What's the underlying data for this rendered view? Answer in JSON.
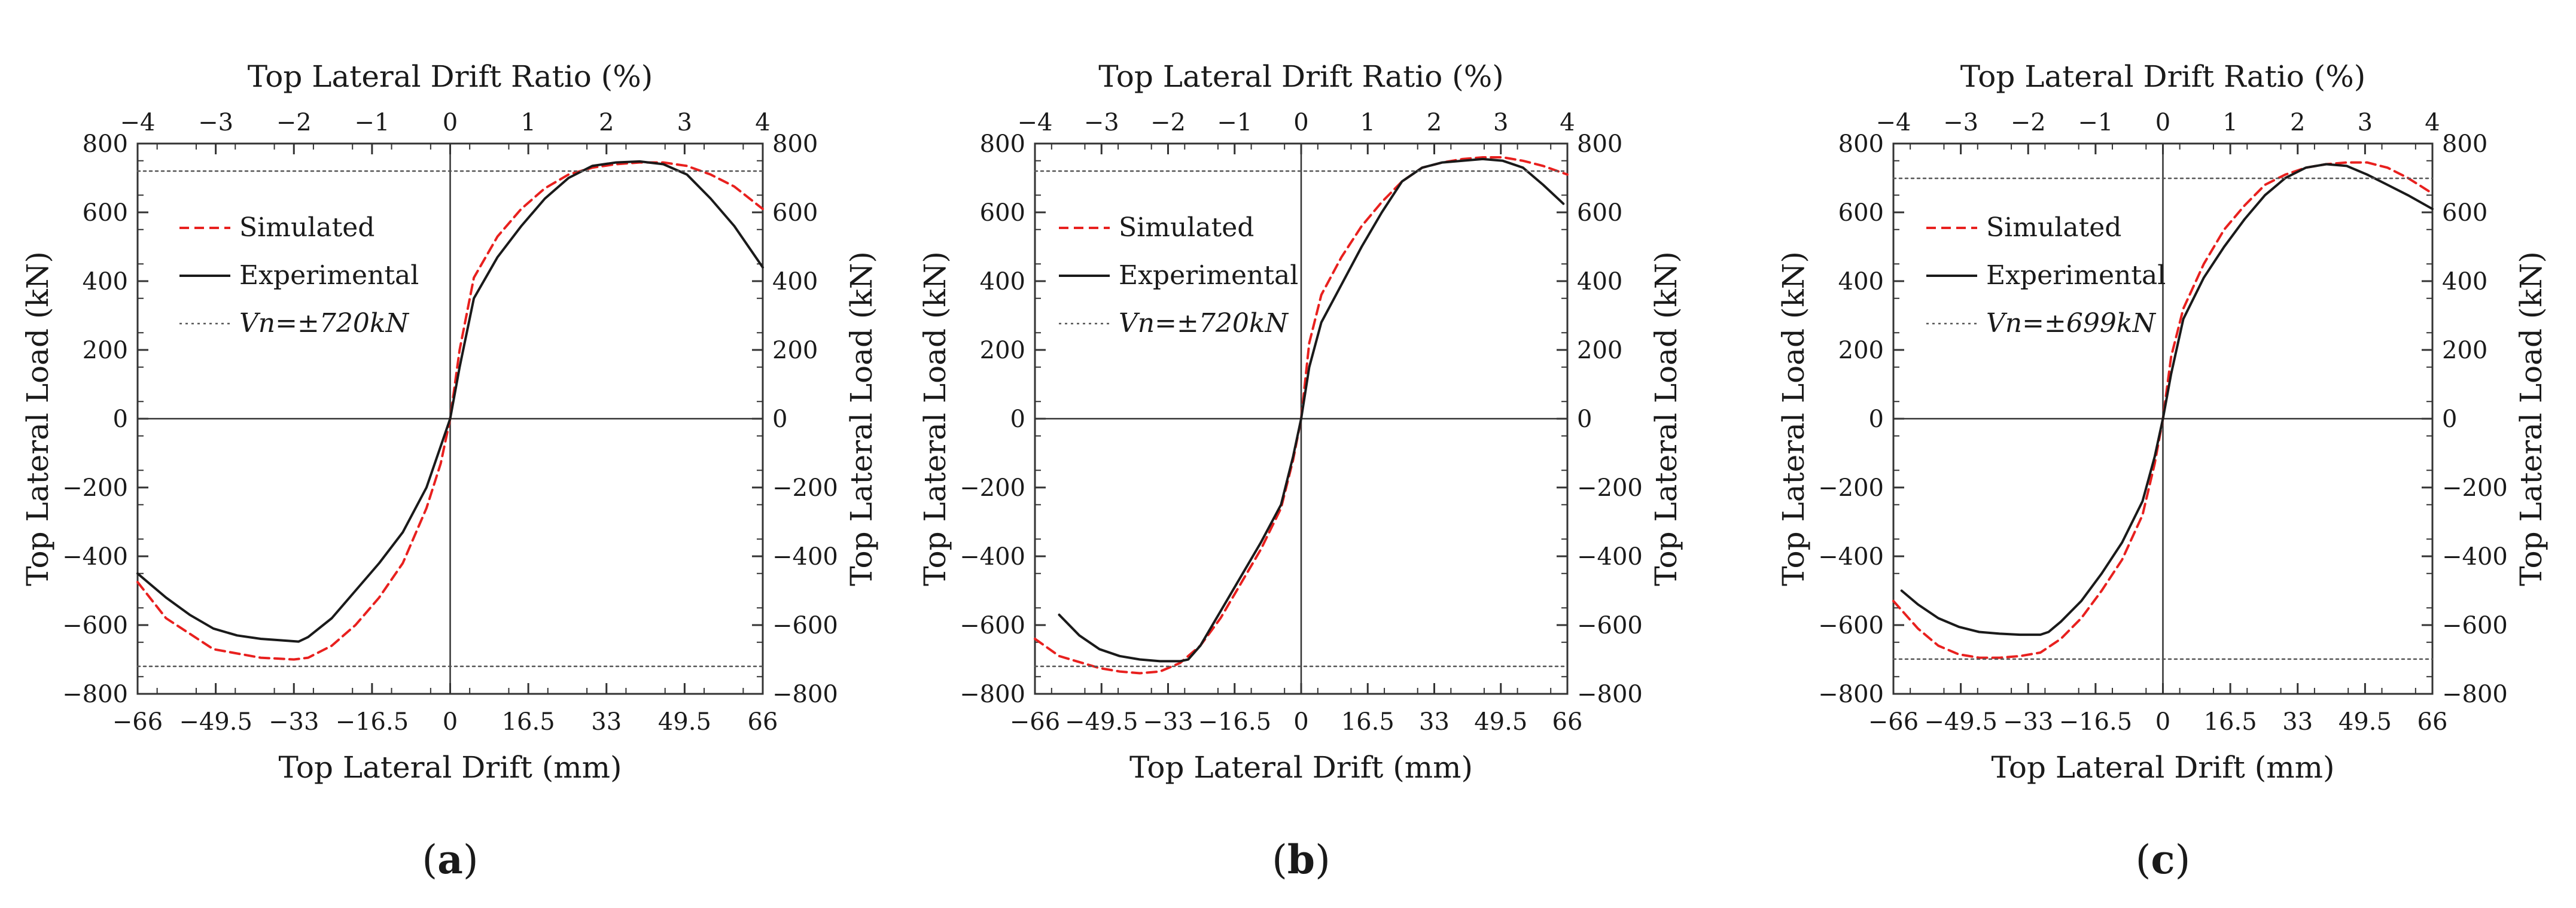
{
  "colors": {
    "simulated": "#e8201e",
    "experimental": "#1a1a1a",
    "nominal": "#555555"
  },
  "chart_data": [
    {
      "type": "line",
      "panel_label": "a",
      "xlabel": "Top Lateral Drift (mm)",
      "ylabel_left": "Top Lateral  Load (kN)",
      "ylabel_right": "Top Lateral  Load (kN)",
      "x2label": "Top Lateral Drift Ratio (%)",
      "xlim": [
        -66,
        66
      ],
      "ylim": [
        -800,
        800
      ],
      "x_ticks": [
        "−66",
        "−49.5",
        "−33",
        "−16.5",
        "0",
        "16.5",
        "33",
        "49.5",
        "66"
      ],
      "x2_ticks": [
        "−4",
        "−3",
        "−2",
        "−1",
        "0",
        "1",
        "2",
        "3",
        "4"
      ],
      "y_ticks": [
        "−800",
        "−600",
        "−400",
        "−200",
        "0",
        "200",
        "400",
        "600",
        "800"
      ],
      "legend_placement": "upper-left",
      "nominal_value": 720,
      "series": [
        {
          "name": "Simulated",
          "style": "dashed",
          "x": [
            -66,
            -60,
            -50,
            -40,
            -33,
            -30,
            -25,
            -20,
            -15,
            -10,
            -5,
            -2,
            0,
            2,
            5,
            10,
            15,
            20,
            25,
            30,
            35,
            40,
            45,
            50,
            55,
            60,
            66
          ],
          "y": [
            -475,
            -580,
            -670,
            -695,
            -700,
            -695,
            -660,
            -600,
            -520,
            -420,
            -260,
            -130,
            0,
            200,
            410,
            530,
            610,
            670,
            710,
            730,
            740,
            745,
            745,
            735,
            710,
            675,
            610
          ]
        },
        {
          "name": "Experimental",
          "style": "solid",
          "x": [
            -66,
            -60,
            -55,
            -50,
            -45,
            -40,
            -35,
            -32,
            -30,
            -25,
            -20,
            -15,
            -10,
            -5,
            -2,
            0,
            2,
            5,
            10,
            15,
            20,
            25,
            30,
            35,
            40,
            45,
            50,
            55,
            60,
            66
          ],
          "y": [
            -450,
            -520,
            -570,
            -610,
            -630,
            -640,
            -645,
            -648,
            -635,
            -580,
            -500,
            -420,
            -330,
            -200,
            -80,
            0,
            150,
            350,
            470,
            560,
            640,
            700,
            735,
            745,
            748,
            740,
            710,
            640,
            560,
            440
          ]
        },
        {
          "name": "Vn=±720kN",
          "style": "dotted",
          "x": [
            -66,
            66
          ],
          "y": [
            720,
            720
          ]
        },
        {
          "style": "dotted",
          "x": [
            -66,
            66
          ],
          "y": [
            -720,
            -720
          ]
        }
      ]
    },
    {
      "type": "line",
      "panel_label": "b",
      "xlabel": "Top  Lateral Drift (mm)",
      "ylabel_left": "Top  Lateral  Load (kN)",
      "ylabel_right": "Top  Lateral  Load (kN)",
      "x2label": "Top Lateral Drift Ratio (%)",
      "xlim": [
        -66,
        66
      ],
      "ylim": [
        -800,
        800
      ],
      "x_ticks": [
        "−66",
        "−49.5",
        "−33",
        "−16.5",
        "0",
        "16.5",
        "33",
        "49.5",
        "66"
      ],
      "x2_ticks": [
        "−4",
        "−3",
        "−2",
        "−1",
        "0",
        "1",
        "2",
        "3",
        "4"
      ],
      "y_ticks": [
        "−800",
        "−600",
        "−400",
        "−200",
        "0",
        "200",
        "400",
        "600",
        "800"
      ],
      "legend_placement": "upper-left",
      "nominal_value": 720,
      "series": [
        {
          "name": "Simulated",
          "style": "dashed",
          "x": [
            -66,
            -60,
            -50,
            -45,
            -40,
            -35,
            -30,
            -25,
            -20,
            -15,
            -10,
            -5,
            -2,
            0,
            2,
            5,
            10,
            15,
            20,
            25,
            30,
            35,
            40,
            45,
            50,
            55,
            60,
            66
          ],
          "y": [
            -640,
            -690,
            -725,
            -735,
            -740,
            -735,
            -710,
            -660,
            -580,
            -480,
            -380,
            -260,
            -120,
            0,
            220,
            360,
            470,
            560,
            630,
            690,
            730,
            745,
            755,
            760,
            760,
            750,
            735,
            710
          ]
        },
        {
          "name": "Experimental",
          "style": "solid",
          "x": [
            -60,
            -55,
            -50,
            -45,
            -40,
            -35,
            -30,
            -28,
            -25,
            -20,
            -15,
            -10,
            -5,
            -2,
            0,
            2,
            5,
            10,
            15,
            20,
            25,
            30,
            35,
            40,
            45,
            50,
            55,
            60,
            65
          ],
          "y": [
            -570,
            -630,
            -670,
            -690,
            -700,
            -705,
            -705,
            -700,
            -660,
            -560,
            -460,
            -360,
            -250,
            -110,
            0,
            150,
            280,
            390,
            500,
            600,
            690,
            730,
            745,
            750,
            755,
            750,
            730,
            680,
            625
          ]
        },
        {
          "name": "Vn=±720kN",
          "style": "dotted",
          "x": [
            -66,
            66
          ],
          "y": [
            720,
            720
          ]
        },
        {
          "style": "dotted",
          "x": [
            -66,
            66
          ],
          "y": [
            -720,
            -720
          ]
        }
      ]
    },
    {
      "type": "line",
      "panel_label": "c",
      "xlabel": "Top Lateral Drift (mm)",
      "ylabel_left": "Top Lateral  Load (kN)",
      "ylabel_right": "Top Lateral  Load (kN)",
      "x2label": "Top Lateral Drift Ratio (%)",
      "xlim": [
        -66,
        66
      ],
      "ylim": [
        -800,
        800
      ],
      "x_ticks": [
        "−66",
        "−49.5",
        "−33",
        "−16.5",
        "0",
        "16.5",
        "33",
        "49.5",
        "66"
      ],
      "x2_ticks": [
        "−4",
        "−3",
        "−2",
        "−1",
        "0",
        "1",
        "2",
        "3",
        "4"
      ],
      "y_ticks": [
        "−800",
        "−600",
        "−400",
        "−200",
        "0",
        "200",
        "400",
        "600",
        "800"
      ],
      "legend_placement": "upper-left",
      "nominal_value": 699,
      "series": [
        {
          "name": "Simulated",
          "style": "dashed",
          "x": [
            -66,
            -60,
            -55,
            -50,
            -45,
            -40,
            -35,
            -30,
            -25,
            -20,
            -15,
            -10,
            -5,
            -2,
            0,
            2,
            5,
            10,
            15,
            20,
            25,
            30,
            35,
            40,
            45,
            50,
            55,
            60,
            66
          ],
          "y": [
            -530,
            -610,
            -660,
            -685,
            -695,
            -695,
            -690,
            -680,
            -640,
            -580,
            -500,
            -410,
            -280,
            -130,
            0,
            180,
            320,
            450,
            550,
            620,
            680,
            710,
            730,
            740,
            745,
            745,
            730,
            700,
            655
          ]
        },
        {
          "name": "Experimental",
          "style": "solid",
          "x": [
            -64,
            -60,
            -55,
            -50,
            -45,
            -40,
            -35,
            -30,
            -28,
            -25,
            -20,
            -15,
            -10,
            -5,
            -2,
            0,
            2,
            5,
            10,
            15,
            20,
            25,
            30,
            35,
            40,
            45,
            50,
            55,
            60,
            66
          ],
          "y": [
            -500,
            -540,
            -580,
            -605,
            -620,
            -625,
            -628,
            -628,
            -620,
            -590,
            -530,
            -450,
            -360,
            -240,
            -110,
            0,
            130,
            290,
            410,
            500,
            580,
            650,
            700,
            730,
            740,
            735,
            710,
            680,
            650,
            610
          ]
        },
        {
          "name": "Vn=±699kN",
          "style": "dotted",
          "x": [
            -66,
            66
          ],
          "y": [
            699,
            699
          ]
        },
        {
          "style": "dotted",
          "x": [
            -66,
            66
          ],
          "y": [
            -699,
            -699
          ]
        }
      ]
    }
  ]
}
